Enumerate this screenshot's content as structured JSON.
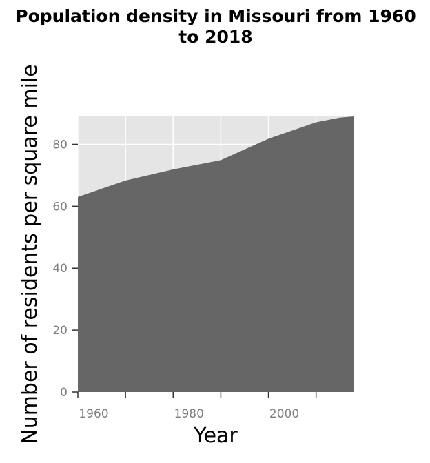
{
  "chart_data": {
    "type": "area",
    "title": "Population density in Missouri from 1960 to 2018",
    "title_lines": [
      "Population density in Missouri from 1960",
      "to 2018"
    ],
    "xlabel": "Year",
    "ylabel": "Number of residents per square mile",
    "x": [
      1960,
      1970,
      1980,
      1990,
      2000,
      2010,
      2015,
      2018
    ],
    "series": [
      {
        "values": [
          63,
          68.3,
          71.9,
          74.9,
          81.8,
          87.1,
          88.6,
          89.0
        ]
      }
    ],
    "xlim": [
      1960,
      2018
    ],
    "ylim": [
      0,
      89
    ],
    "x_ticks": [
      1960,
      1980,
      2000
    ],
    "x_tick_marks": [
      1960,
      1970,
      1980,
      1990,
      2000,
      2010
    ],
    "y_ticks": [
      0,
      20,
      40,
      60,
      80
    ],
    "grid": true,
    "legend": "none",
    "colors": {
      "area": "#666666",
      "panel": "#e5e5e5",
      "grid": "#ffffff",
      "tick_text": "#7f7f7f",
      "tick_mark": "#333333",
      "text": "#000000"
    }
  }
}
